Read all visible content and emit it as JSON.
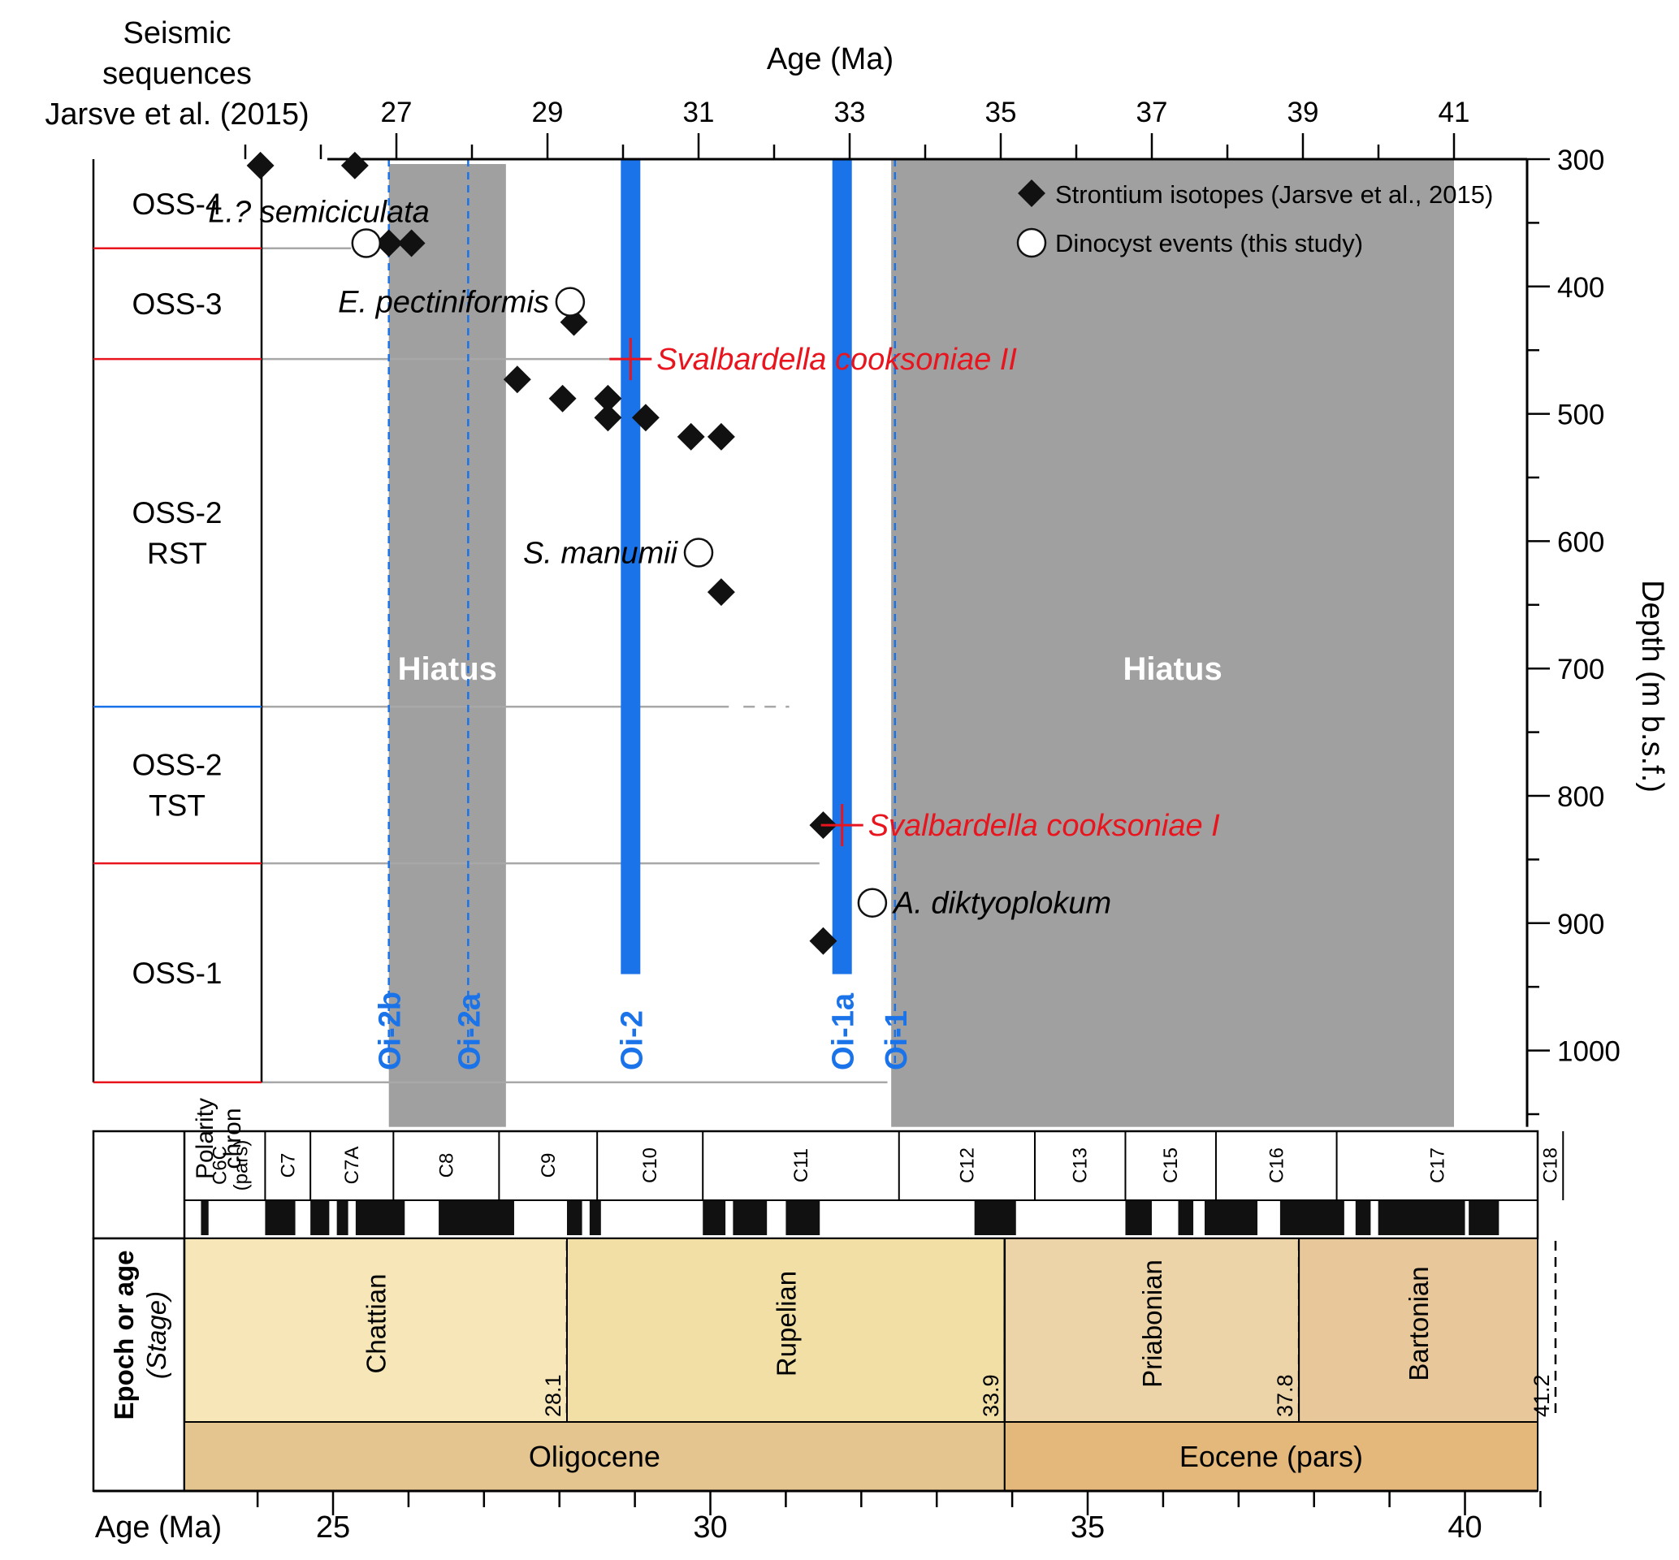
{
  "top_chart": {
    "left_header": [
      "Seismic",
      "sequences",
      "Jarsve et al. (2015)"
    ],
    "x_axis_title": "Age (Ma)",
    "x_ticks": [
      27,
      29,
      31,
      33,
      35,
      37,
      39,
      41
    ],
    "y_axis_title": "Depth (m b.s.f.)",
    "y_ticks": [
      300,
      400,
      500,
      600,
      700,
      800,
      900,
      1000
    ],
    "legend": {
      "strontium": "Strontium isotopes (Jarsve et al., 2015)",
      "dinocyst": "Dinocyst events (this study)"
    },
    "hiatus_label": "Hiatus",
    "colors": {
      "hiatus": "#a0a0a0",
      "event_blue": "#1a73e8",
      "red": "#e8141e",
      "grey_line": "#a8a8a8"
    }
  },
  "chart_data": {
    "type": "scatter",
    "x_label": "Age (Ma)",
    "y_label": "Depth (m b.s.f.)",
    "xlim": [
      24.2,
      41
    ],
    "ylim": [
      300,
      1060
    ],
    "y_inverted": true,
    "series": [
      {
        "name": "Strontium isotopes (Jarsve et al., 2015)",
        "marker": "diamond",
        "points": [
          [
            25.2,
            305
          ],
          [
            26.45,
            305
          ],
          [
            26.9,
            366
          ],
          [
            27.2,
            366
          ],
          [
            29.35,
            428
          ],
          [
            28.6,
            473
          ],
          [
            29.2,
            488
          ],
          [
            29.8,
            488
          ],
          [
            29.8,
            503
          ],
          [
            30.3,
            503
          ],
          [
            30.9,
            518
          ],
          [
            31.3,
            518
          ],
          [
            31.3,
            640
          ],
          [
            32.65,
            823
          ],
          [
            32.65,
            914
          ]
        ]
      },
      {
        "name": "Dinocyst events (this study)",
        "marker": "open-circle",
        "points": [
          {
            "x": 26.6,
            "y": 366,
            "label": "L.? semiciculata"
          },
          {
            "x": 29.3,
            "y": 412,
            "label": "E. pectiniformis"
          },
          {
            "x": 31.0,
            "y": 609,
            "label": "S. manumii"
          },
          {
            "x": 33.3,
            "y": 884,
            "label": "A. diktyoplokum"
          }
        ]
      }
    ],
    "red_markers": [
      {
        "x": 30.1,
        "y": 457,
        "label": "Svalbardella cooksoniae II"
      },
      {
        "x": 32.9,
        "y": 823,
        "label": "Svalbardella cooksoniae I"
      }
    ],
    "hiatus_bands": [
      {
        "from": 26.9,
        "to": 28.45,
        "label": "Hiatus"
      },
      {
        "from": 33.55,
        "to": 41,
        "label": "Hiatus"
      }
    ],
    "isotope_events": [
      {
        "name": "Oi-2b",
        "age": 26.9,
        "style": "dashed"
      },
      {
        "name": "Oi-2a",
        "age": 27.95,
        "style": "dashed"
      },
      {
        "name": "Oi-2",
        "age": 30.1,
        "style": "bar"
      },
      {
        "name": "Oi-1a",
        "age": 32.9,
        "style": "bar"
      },
      {
        "name": "Oi-1",
        "age": 33.6,
        "style": "dashed"
      }
    ],
    "sequences": [
      {
        "name": "OSS-4",
        "top": 300,
        "bottom": 370
      },
      {
        "name": "OSS-3",
        "top": 370,
        "bottom": 457
      },
      {
        "name": "OSS-2 RST",
        "top": 457,
        "bottom": 730
      },
      {
        "name": "OSS-2 TST",
        "top": 730,
        "bottom": 853
      },
      {
        "name": "OSS-1",
        "top": 853,
        "bottom": 1025
      }
    ],
    "sequence_boundaries": [
      {
        "depth": 370,
        "color": "red",
        "line_to_age": 26.4
      },
      {
        "depth": 457,
        "color": "red",
        "line_to_age": 30.0
      },
      {
        "depth": 730,
        "color": "blue",
        "line_to_age": 31.4,
        "dashed_to": 32.2
      },
      {
        "depth": 853,
        "color": "red",
        "line_to_age": 32.6
      },
      {
        "depth": 1025,
        "color": "red",
        "line_to_age": 33.5
      }
    ]
  },
  "bottom_scale": {
    "polarity_label": [
      "Polarity",
      "chron"
    ],
    "chrons": [
      "C6C (pars)",
      "C7",
      "C7A",
      "C8",
      "C9",
      "C10",
      "C11",
      "C12",
      "C13",
      "C15",
      "C16",
      "C17",
      "C18"
    ],
    "chron_boundaries": [
      23.2,
      24.1,
      24.7,
      25.8,
      27.2,
      28.5,
      29.9,
      32.5,
      34.3,
      35.5,
      36.7,
      38.3,
      41.3
    ],
    "normal_intervals": [
      [
        23.25,
        23.35
      ],
      [
        24.1,
        24.5
      ],
      [
        24.7,
        24.95
      ],
      [
        25.05,
        25.2
      ],
      [
        25.3,
        25.95
      ],
      [
        26.4,
        27.4
      ],
      [
        28.1,
        28.3
      ],
      [
        28.4,
        28.55
      ],
      [
        29.9,
        30.2
      ],
      [
        30.3,
        30.75
      ],
      [
        31.0,
        31.45
      ],
      [
        33.5,
        34.05
      ],
      [
        35.5,
        35.85
      ],
      [
        36.2,
        36.4
      ],
      [
        36.55,
        37.25
      ],
      [
        37.55,
        38.4
      ],
      [
        38.55,
        38.75
      ],
      [
        38.85,
        39.05
      ],
      [
        39.0,
        40.0
      ],
      [
        40.05,
        40.45
      ]
    ],
    "stage_label": [
      "Epoch or age",
      "(Stage)"
    ],
    "stages": [
      {
        "name": "Chattian",
        "from": 23.03,
        "to": 28.1,
        "boundary_label": "28.1",
        "color": "#f6e6b8"
      },
      {
        "name": "Rupelian",
        "from": 28.1,
        "to": 33.9,
        "boundary_label": "33.9",
        "color": "#f2dfa6"
      },
      {
        "name": "Priabonian",
        "from": 33.9,
        "to": 37.8,
        "boundary_label": "37.8",
        "color": "#edd4a8"
      },
      {
        "name": "Bartonian",
        "from": 37.8,
        "to": 41.2,
        "boundary_label": "41.2",
        "color": "#e8c79b"
      }
    ],
    "epochs": [
      {
        "name": "Oligocene",
        "from": 23.03,
        "to": 33.9,
        "color": "#e4c48f"
      },
      {
        "name": "Eocene (pars)",
        "from": 33.9,
        "to": 41.2,
        "color": "#e4b77a"
      }
    ],
    "age_axis_title": "Age (Ma)",
    "age_ticks": [
      25,
      30,
      35,
      40
    ],
    "age_range": [
      23.05,
      41.1
    ]
  }
}
